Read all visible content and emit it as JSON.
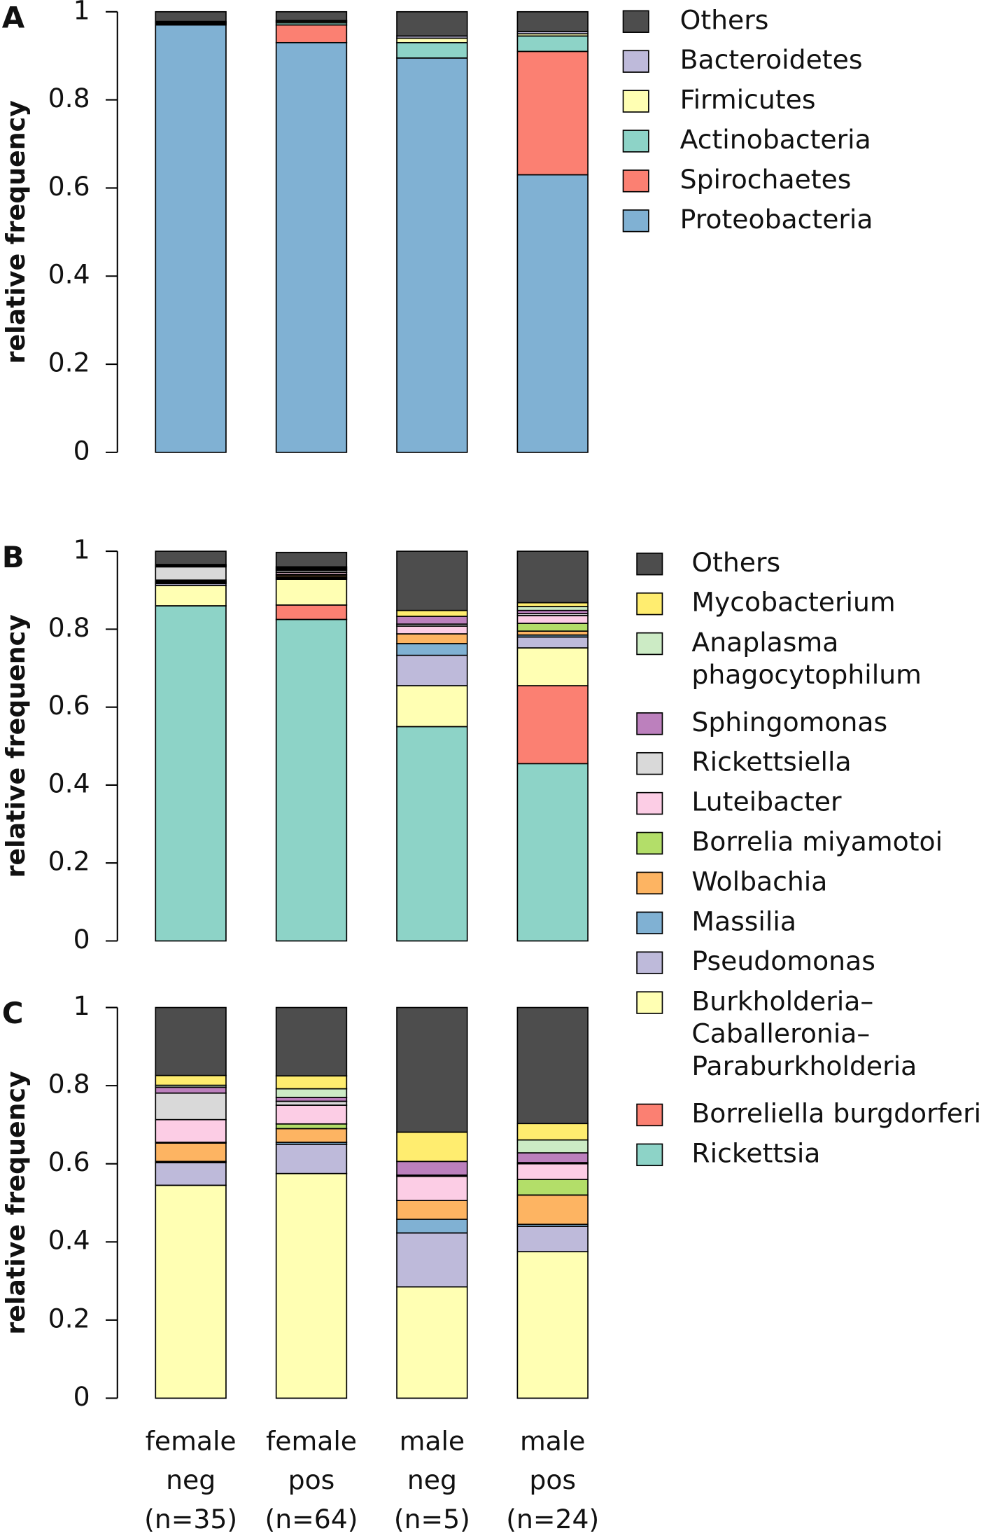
{
  "chart_data": [
    {
      "type": "bar",
      "stacked": true,
      "label": "A",
      "ylabel": "relative frequency",
      "ylim": [
        0,
        1
      ],
      "yticks": [
        0,
        0.2,
        0.4,
        0.6,
        0.8,
        1
      ],
      "series": [
        {
          "name": "Proteobacteria",
          "color": "#80b1d3",
          "values": [
            0.97,
            0.93,
            0.895,
            0.63
          ]
        },
        {
          "name": "Spirochaetes",
          "color": "#fb8072",
          "values": [
            0.002,
            0.04,
            0,
            0.28
          ]
        },
        {
          "name": "Actinobacteria",
          "color": "#8dd3c7",
          "values": [
            0.002,
            0.005,
            0.035,
            0.035
          ]
        },
        {
          "name": "Firmicutes",
          "color": "#ffffb3",
          "values": [
            0.002,
            0.003,
            0.01,
            0.005
          ]
        },
        {
          "name": "Bacteroidetes",
          "color": "#bebada",
          "values": [
            0.002,
            0.002,
            0.005,
            0.005
          ]
        },
        {
          "name": "Others",
          "color": "#4d4d4d",
          "values": [
            0.022,
            0.02,
            0.055,
            0.045
          ]
        }
      ]
    },
    {
      "type": "bar",
      "stacked": true,
      "label": "B",
      "ylabel": "relative frequency",
      "ylim": [
        0,
        1
      ],
      "yticks": [
        0,
        0.2,
        0.4,
        0.6,
        0.8,
        1
      ],
      "series": [
        {
          "name": "Rickettsia",
          "color": "#8dd3c7",
          "values": [
            0.86,
            0.825,
            0.55,
            0.455
          ]
        },
        {
          "name": "Borreliella burgdorferi",
          "color": "#fb8072",
          "values": [
            0,
            0.037,
            0,
            0.2
          ]
        },
        {
          "name": "Burkholderia–\nCaballeronia–\nParaburkholderia",
          "color": "#ffffb3",
          "values": [
            0.052,
            0.066,
            0.105,
            0.097
          ]
        },
        {
          "name": "Pseudomonas",
          "color": "#bebada",
          "values": [
            0.005,
            0.003,
            0.078,
            0.028
          ]
        },
        {
          "name": "Massilia",
          "color": "#80b1d3",
          "values": [
            0.002,
            0.003,
            0.03,
            0.005
          ]
        },
        {
          "name": "Wolbachia",
          "color": "#fdb462",
          "values": [
            0.002,
            0.004,
            0.025,
            0.01
          ]
        },
        {
          "name": "Borrelia miyamotoi",
          "color": "#b3de69",
          "values": [
            0.002,
            0.003,
            0,
            0.02
          ]
        },
        {
          "name": "Luteibacter",
          "color": "#fccde5",
          "values": [
            0.003,
            0.005,
            0.02,
            0.02
          ]
        },
        {
          "name": "Rickettsiella",
          "color": "#d9d9d9",
          "values": [
            0.034,
            0.005,
            0.005,
            0.005
          ]
        },
        {
          "name": "Sphingomonas",
          "color": "#bc80bd",
          "values": [
            0.002,
            0.003,
            0.02,
            0.008
          ]
        },
        {
          "name": "Anaplasma\nphagocytophilum",
          "color": "#ccebc5",
          "values": [
            0.002,
            0.003,
            0,
            0.01
          ]
        },
        {
          "name": "Mycobacterium",
          "color": "#ffed6f",
          "values": [
            0.002,
            0.003,
            0.015,
            0.01
          ]
        },
        {
          "name": "Others",
          "color": "#4d4d4d",
          "values": [
            0.034,
            0.037,
            0.152,
            0.132
          ]
        }
      ]
    },
    {
      "type": "bar",
      "stacked": true,
      "label": "C",
      "ylabel": "relative frequency",
      "ylim": [
        0,
        1
      ],
      "yticks": [
        0,
        0.2,
        0.4,
        0.6,
        0.8,
        1
      ],
      "categories": [
        "female\nneg\n(n=35)",
        "female\npos\n(n=64)",
        "male\nneg\n(n=5)",
        "male\npos\n(n=24)"
      ],
      "series": [
        {
          "color": "#ffffb3",
          "values": [
            0.545,
            0.575,
            0.285,
            0.375
          ]
        },
        {
          "color": "#bebada",
          "values": [
            0.058,
            0.075,
            0.138,
            0.065
          ]
        },
        {
          "color": "#80b1d3",
          "values": [
            0.003,
            0.005,
            0.035,
            0.005
          ]
        },
        {
          "color": "#fdb462",
          "values": [
            0.047,
            0.035,
            0.048,
            0.075
          ]
        },
        {
          "color": "#b3de69",
          "values": [
            0.002,
            0.012,
            0,
            0.04
          ]
        },
        {
          "color": "#fccde5",
          "values": [
            0.058,
            0.048,
            0.062,
            0.04
          ]
        },
        {
          "color": "#d9d9d9",
          "values": [
            0.068,
            0.01,
            0.003,
            0.003
          ]
        },
        {
          "color": "#bc80bd",
          "values": [
            0.015,
            0.01,
            0.035,
            0.025
          ]
        },
        {
          "color": "#ccebc5",
          "values": [
            0.005,
            0.022,
            0,
            0.033
          ]
        },
        {
          "color": "#ffed6f",
          "values": [
            0.025,
            0.033,
            0.075,
            0.042
          ]
        },
        {
          "color": "#4d4d4d",
          "values": [
            0.174,
            0.175,
            0.319,
            0.297
          ]
        }
      ]
    }
  ]
}
